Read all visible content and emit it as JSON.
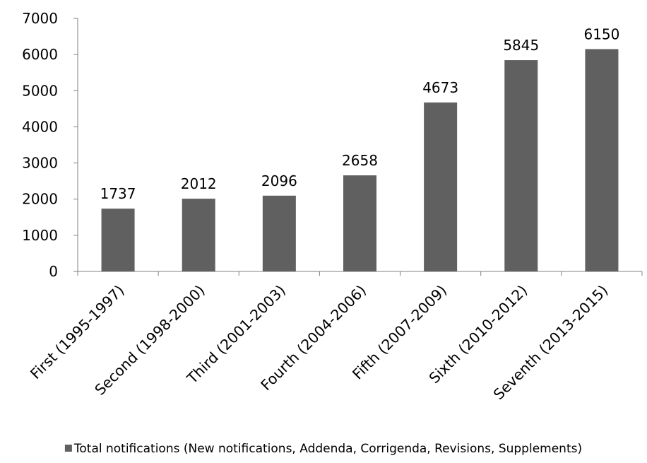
{
  "chart_data": {
    "type": "bar",
    "categories": [
      "First (1995-1997)",
      "Second (1998-2000)",
      "Third (2001-2003)",
      "Fourth (2004-2006)",
      "Fifth (2007-2009)",
      "Sixth (2010-2012)",
      "Seventh (2013-2015)"
    ],
    "series": [
      {
        "name": "Total notifications (New notifications, Addenda, Corrigenda, Revisions, Supplements)",
        "values": [
          1737,
          2012,
          2096,
          2658,
          4673,
          5845,
          6150
        ],
        "color": "#606060"
      }
    ],
    "data_labels": [
      "1737",
      "2012",
      "2096",
      "2658",
      "4673",
      "5845",
      "6150"
    ],
    "y_ticks": [
      "0",
      "1000",
      "2000",
      "3000",
      "4000",
      "5000",
      "6000",
      "7000"
    ],
    "ylim": [
      0,
      7000
    ],
    "grid": false,
    "legend_position": "bottom",
    "title": "",
    "xlabel": "",
    "ylabel": ""
  }
}
